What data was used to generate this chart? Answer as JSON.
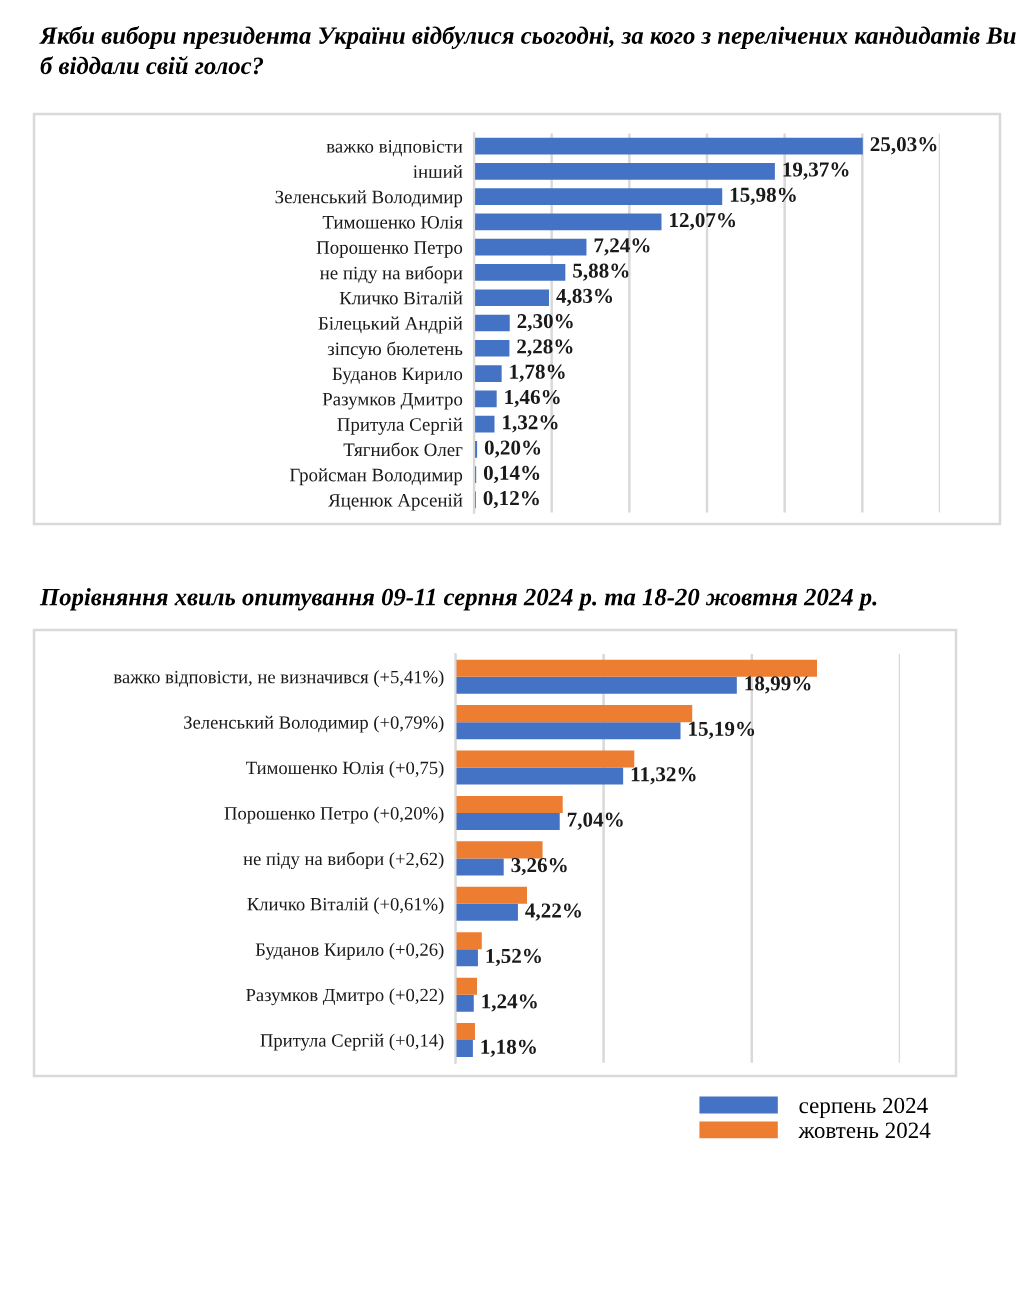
{
  "chart_data": [
    {
      "type": "bar",
      "orientation": "horizontal",
      "title": "Якби вибори президента України відбулися сьогодні, за кого з перелічених кандидатів Ви б віддали свій голос?",
      "categories": [
        "важко відповісти",
        "інший",
        "Зеленський Володимир",
        "Тимошенко Юлія",
        "Порошенко Петро",
        "не піду на вибори",
        "Кличко Віталій",
        "Білецький Андрій",
        "зіпсую бюлетень",
        "Буданов Кирило",
        "Разумков Дмитро",
        "Притула Сергій",
        "Тягнибок Олег",
        "Гройсман Володимир",
        "Яценюк Арсеній"
      ],
      "values": [
        25.03,
        19.37,
        15.98,
        12.07,
        7.24,
        5.88,
        4.83,
        2.3,
        2.28,
        1.78,
        1.46,
        1.32,
        0.2,
        0.14,
        0.12
      ],
      "value_labels": [
        "25,03%",
        "19,37%",
        "15,98%",
        "12,07%",
        "7,24%",
        "5,88%",
        "4,83%",
        "2,30%",
        "2,28%",
        "1,78%",
        "1,46%",
        "1,32%",
        "0,20%",
        "0,14%",
        "0,12%"
      ],
      "color": "#4472c4",
      "xlim": [
        0,
        30
      ],
      "xticks": [
        {
          "value": 0,
          "label": null
        },
        {
          "value": 5,
          "label": null
        },
        {
          "value": 10,
          "label": null
        },
        {
          "value": 15,
          "label": null
        },
        {
          "value": 20,
          "label": null
        },
        {
          "value": 25,
          "label": null
        },
        {
          "value": 30,
          "label": null
        }
      ],
      "grid": "x",
      "tick_labels": "y"
    },
    {
      "type": "bar",
      "orientation": "horizontal",
      "title": "Порівняння хвиль опитування 09-11 серпня 2024 р. та 18-20 жовтня 2024 р.",
      "categories": [
        "важко відповісти, не визначився (+5,41%)",
        "Зеленський Володимир (+0,79%)",
        "Тимошенко Юлія (+0,75)",
        "Порошенко Петро (+0,20%)",
        "не піду на вибори (+2,62)",
        "Кличко Віталій (+0,61%)",
        "Буданов Кирило (+0,26)",
        "Разумков Дмитро (+0,22)",
        "Притула Сергій (+0,14)"
      ],
      "series": [
        {
          "name": "серпень 2024",
          "color": "#4472c4",
          "values": [
            18.99,
            15.19,
            11.32,
            7.04,
            3.26,
            4.22,
            1.52,
            1.24,
            1.18
          ],
          "value_labels": [
            "18,99%",
            "15,19%",
            "11,32%",
            "7,04%",
            "3,26%",
            "4,22%",
            "1,52%",
            "1,24%",
            "1,18%"
          ]
        },
        {
          "name": "жовтень 2024",
          "color": "#ed7d31",
          "values": [
            24.4,
            15.98,
            12.07,
            7.24,
            5.88,
            4.83,
            1.78,
            1.46,
            1.32
          ]
        }
      ],
      "xlim": [
        0,
        30
      ],
      "xticks": [
        {
          "value": 0,
          "label": null
        },
        {
          "value": 10,
          "label": null
        },
        {
          "value": 20,
          "label": null
        },
        {
          "value": 30,
          "label": null
        }
      ],
      "grid": "x",
      "tick_labels": "y",
      "legend": "bottom right"
    }
  ]
}
